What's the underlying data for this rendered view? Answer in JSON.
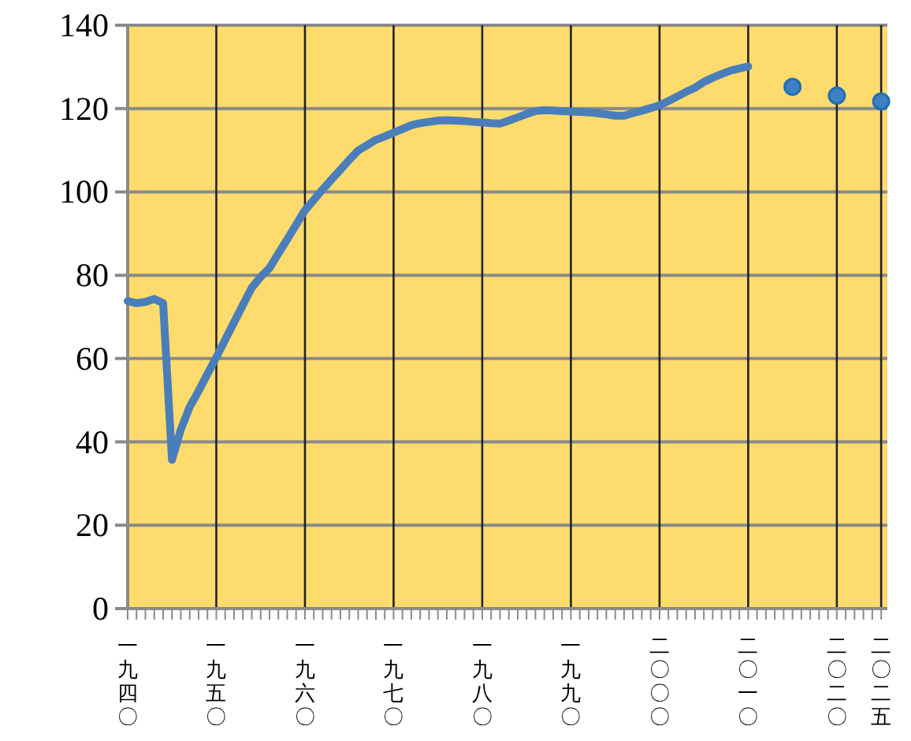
{
  "chart_data": {
    "type": "line",
    "categories": [
      "一九四〇",
      null,
      null,
      null,
      null,
      null,
      null,
      null,
      null,
      null,
      "一九五〇",
      null,
      null,
      null,
      null,
      null,
      null,
      null,
      null,
      null,
      "一九六〇",
      null,
      null,
      null,
      null,
      null,
      null,
      null,
      null,
      null,
      "一九七〇",
      null,
      null,
      null,
      null,
      null,
      null,
      null,
      null,
      null,
      "一九八〇",
      null,
      null,
      null,
      null,
      null,
      null,
      null,
      null,
      null,
      "一九九〇",
      null,
      null,
      null,
      null,
      null,
      null,
      null,
      null,
      null,
      "二〇〇〇",
      null,
      null,
      null,
      null,
      null,
      null,
      null,
      null,
      null,
      "二〇一〇",
      null,
      null,
      null,
      null,
      null,
      null,
      null,
      null,
      null,
      "二〇二〇",
      null,
      null,
      null,
      null,
      "二〇二五"
    ],
    "ylim": [
      0,
      140
    ],
    "yticks": [
      0,
      20,
      40,
      60,
      80,
      100,
      120,
      140
    ],
    "grid": true,
    "series": [
      {
        "color": "#4a7ebb",
        "values": [
          73.8,
          73.3,
          73.6,
          74.3,
          73.3,
          35.7,
          43,
          48.4,
          52.2,
          56.3,
          60.3,
          64.5,
          68.7,
          72.9,
          77,
          79.6,
          81.7,
          85.2,
          88.6,
          92.1,
          95.6,
          98.1,
          100.6,
          103,
          105.3,
          107.7,
          109.9,
          111.2,
          112.5,
          113.3,
          114.2,
          115.1,
          116,
          116.5,
          116.8,
          117.1,
          117.2,
          117.1,
          117,
          116.8,
          116.7,
          116.5,
          116.4,
          117.1,
          117.9,
          118.7,
          119.4,
          119.6,
          119.5,
          119.4,
          119.3,
          119.2,
          119.1,
          118.9,
          118.6,
          118.3,
          118.3,
          118.9,
          119.5,
          120.1,
          120.8,
          121.8,
          122.9,
          124,
          125,
          126.4,
          127.4,
          128.3,
          129.1,
          129.6,
          130.1,
          null,
          null,
          null,
          null,
          null,
          null,
          null,
          null,
          null,
          null,
          null,
          null,
          null,
          null,
          null
        ]
      },
      {
        "type": "scatter",
        "color": "#3f7fc4",
        "marker": "circle",
        "values": [
          null,
          null,
          null,
          null,
          null,
          null,
          null,
          null,
          null,
          null,
          null,
          null,
          null,
          null,
          null,
          null,
          null,
          null,
          null,
          null,
          null,
          null,
          null,
          null,
          null,
          null,
          null,
          null,
          null,
          null,
          null,
          null,
          null,
          null,
          null,
          null,
          null,
          null,
          null,
          null,
          null,
          null,
          null,
          null,
          null,
          null,
          null,
          null,
          null,
          null,
          null,
          null,
          null,
          null,
          null,
          null,
          null,
          null,
          null,
          null,
          null,
          null,
          null,
          null,
          null,
          null,
          null,
          null,
          null,
          null,
          null,
          null,
          null,
          null,
          null,
          125.2,
          null,
          null,
          null,
          null,
          123.1,
          null,
          null,
          null,
          null,
          121.7
        ]
      }
    ]
  }
}
